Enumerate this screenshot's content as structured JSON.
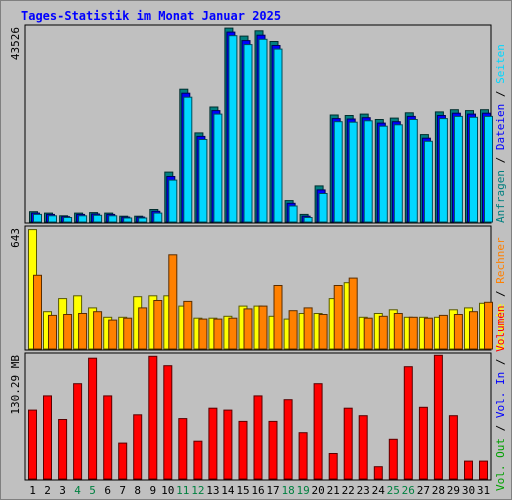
{
  "title": "Tages-Statistik im Monat Januar 2025",
  "colors": {
    "background": "#c0c0c0",
    "title": "#0000ff",
    "anfragen": "#008080",
    "dateien": "#0000ff",
    "seiten": "#00d7ff",
    "besuche": "#ffff00",
    "rechner": "#ff8000",
    "volumen": "#ff0000",
    "vol_in": "#0000ff",
    "vol_out": "#00a000",
    "weekend_label": "#008040",
    "weekday_label": "#000000",
    "separator": "#000000"
  },
  "axis_labels": {
    "top_max": "43526",
    "mid_max": "643",
    "bottom_max": "130.29 MB"
  },
  "legend": {
    "top": [
      {
        "key": "anfragen",
        "text": "Anfragen"
      },
      {
        "key": "dateien",
        "text": "Dateien"
      },
      {
        "key": "seiten",
        "text": "Seiten"
      }
    ],
    "mid": [
      {
        "key": "besuche",
        "text": "Besuche"
      },
      {
        "key": "rechner",
        "text": "Rechner"
      }
    ],
    "bottom": [
      {
        "key": "vol_out",
        "text": "Vol. Out"
      },
      {
        "key": "vol_in",
        "text": "Vol. In"
      },
      {
        "key": "volumen",
        "text": "Volumen"
      }
    ],
    "separator": " / "
  },
  "chart_data": {
    "type": "bar",
    "title": "Tages-Statistik im Monat Januar 2025",
    "categories": [
      "1",
      "2",
      "3",
      "4",
      "5",
      "6",
      "7",
      "8",
      "9",
      "10",
      "11",
      "12",
      "13",
      "14",
      "15",
      "16",
      "17",
      "18",
      "19",
      "20",
      "21",
      "22",
      "23",
      "24",
      "25",
      "26",
      "27",
      "28",
      "29",
      "30",
      "31"
    ],
    "weekend_days": [
      "4",
      "5",
      "11",
      "12",
      "18",
      "19",
      "25",
      "26"
    ],
    "panels": [
      {
        "name": "top",
        "ymax": 43526,
        "ymax_label": "43526",
        "series": [
          {
            "name": "Anfragen",
            "key": "anfragen",
            "values": [
              2300,
              2000,
              1400,
              2000,
              2100,
              2000,
              1300,
              1300,
              2800,
              11200,
              29800,
              20000,
              25800,
              43500,
              41700,
              42900,
              40500,
              4800,
              1700,
              8100,
              24000,
              23900,
              24200,
              23000,
              23300,
              24500,
              19600,
              24700,
              25200,
              25000,
              25200
            ]
          },
          {
            "name": "Dateien",
            "key": "dateien",
            "values": [
              2000,
              1700,
              1200,
              1700,
              1800,
              1700,
              1100,
              1100,
              2400,
              10200,
              28900,
              19200,
              25000,
              42600,
              40700,
              41900,
              39600,
              4200,
              1300,
              7200,
              23200,
              23100,
              23400,
              22200,
              22500,
              23700,
              18800,
              23900,
              24400,
              24200,
              24400
            ]
          },
          {
            "name": "Seiten",
            "key": "seiten",
            "values": [
              1700,
              1400,
              1000,
              1400,
              1500,
              1400,
              900,
              900,
              2000,
              9400,
              28000,
              18500,
              24200,
              41800,
              39800,
              41000,
              38800,
              3600,
              1000,
              6400,
              22500,
              22400,
              22700,
              21500,
              21800,
              23000,
              18100,
              23200,
              23700,
              23500,
              23700
            ]
          }
        ]
      },
      {
        "name": "mid",
        "ymax": 643,
        "ymax_label": "643",
        "series": [
          {
            "name": "Besuche",
            "key": "besuche",
            "values": [
              640,
              200,
              270,
              285,
              220,
              170,
              170,
              280,
              285,
              285,
              230,
              165,
              165,
              175,
              230,
              230,
              175,
              160,
              190,
              190,
              270,
              355,
              170,
              190,
              210,
              170,
              170,
              170,
              210,
              220,
              245
            ]
          },
          {
            "name": "Rechner",
            "key": "rechner",
            "values": [
              395,
              180,
              185,
              190,
              200,
              155,
              165,
              220,
              260,
              505,
              255,
              160,
              160,
              165,
              215,
              230,
              340,
              205,
              220,
              185,
              340,
              380,
              165,
              175,
              190,
              170,
              165,
              180,
              185,
              200,
              250
            ]
          }
        ]
      },
      {
        "name": "bottom",
        "ymax": 130.29,
        "ymax_label": "130.29 MB",
        "series": [
          {
            "name": "Volumen",
            "key": "volumen",
            "values": [
              73,
              88,
              63,
              101,
              128,
              88,
              38,
              68,
              130,
              120,
              64,
              40,
              75,
              73,
              61,
              88,
              61,
              84,
              49,
              101,
              27,
              75,
              67,
              13,
              42,
              119,
              76,
              131,
              67,
              19,
              19
            ]
          }
        ]
      }
    ]
  }
}
